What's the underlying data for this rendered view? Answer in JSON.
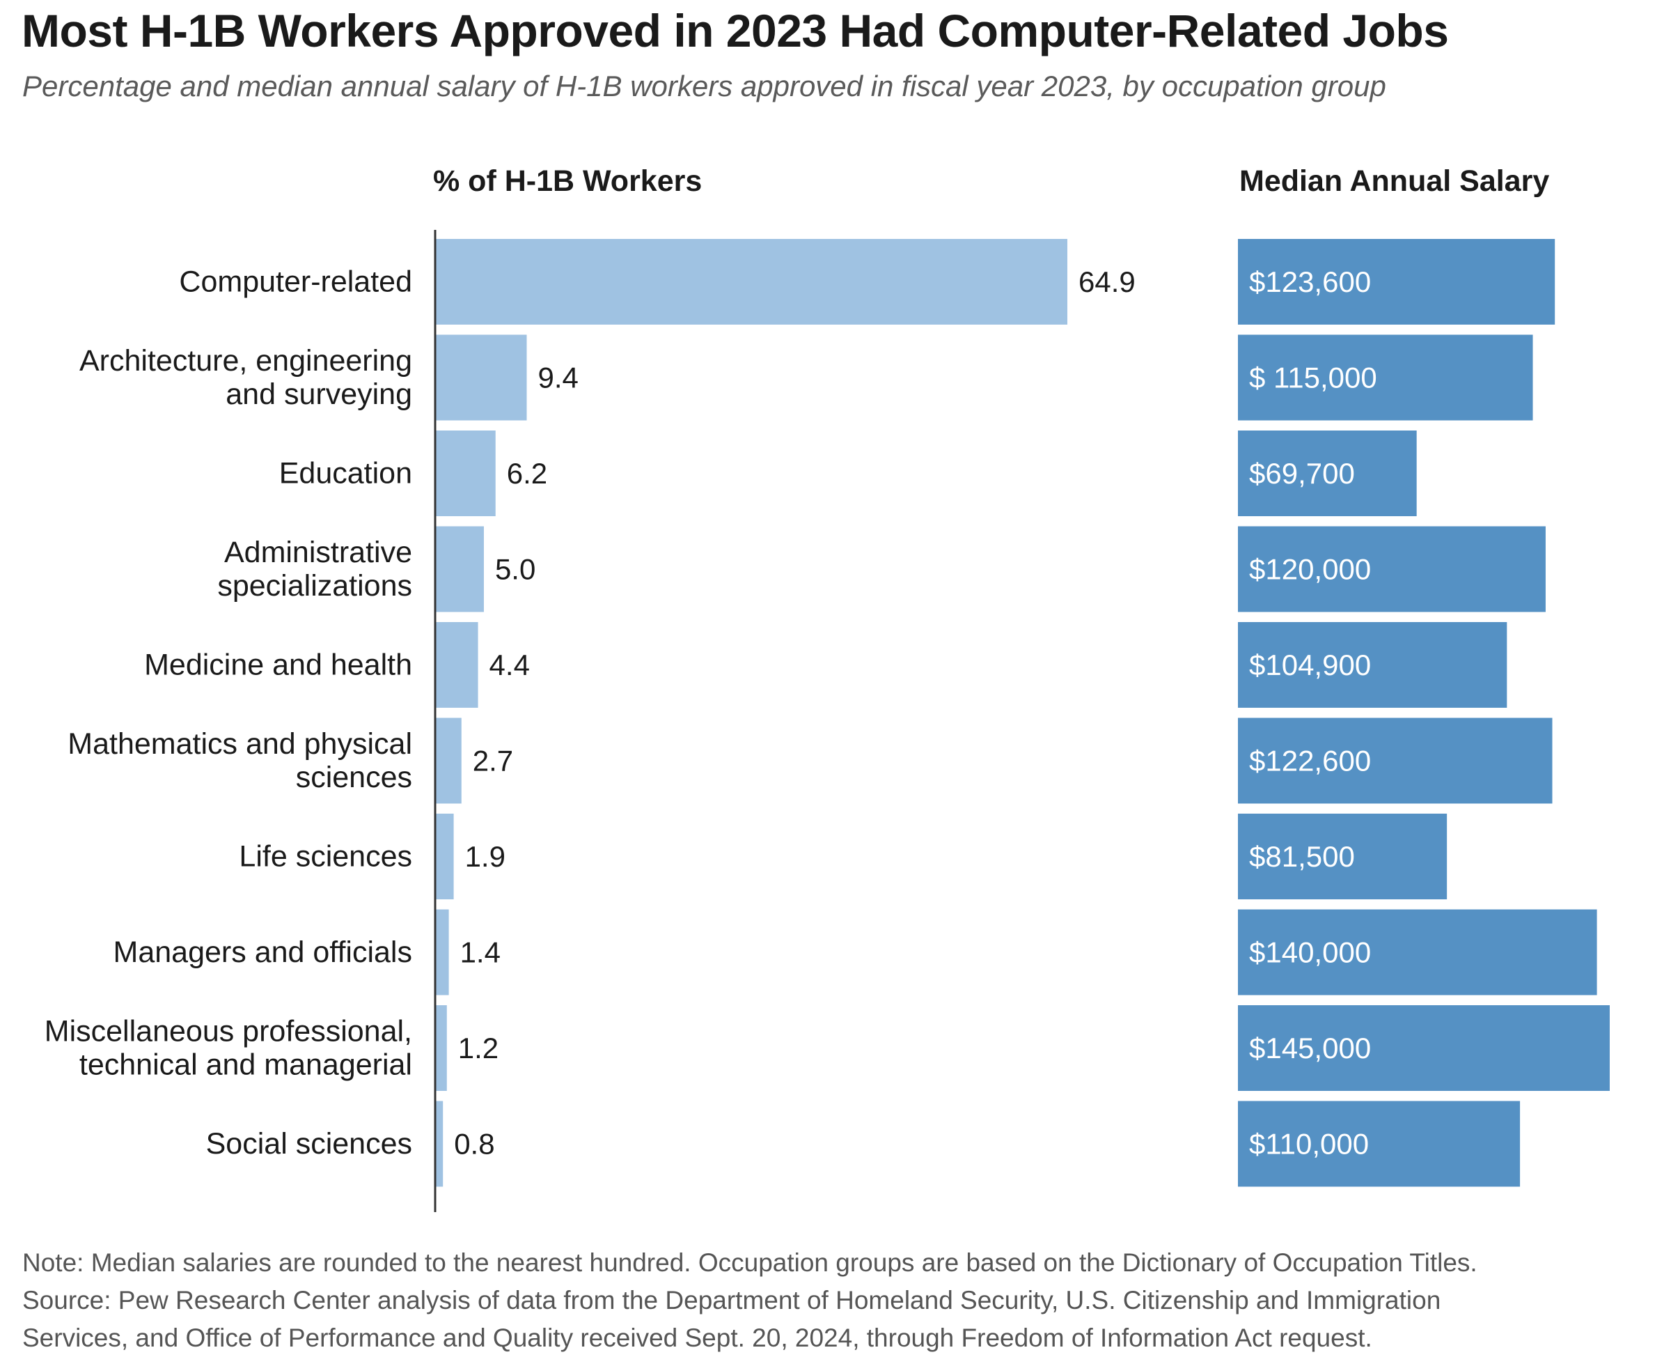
{
  "header": {
    "title": "Most H-1B Workers Approved in 2023 Had Computer-Related Jobs",
    "subtitle": "Percentage and median annual salary of H-1B workers approved in fiscal year 2023, by occupation group"
  },
  "notes": {
    "note": "Note: Median salaries are rounded to the nearest hundred. Occupation groups are based on the Dictionary of Occupation Titles.",
    "source_line_1": "Source: Pew Research Center analysis of data from the Department of Homeland Security, U.S. Citizenship and Immigration",
    "source_line_2": "Services, and Office of Performance and Quality received Sept. 20, 2024, through Freedom of Information Act request."
  },
  "colors": {
    "percent_bar": "#9fc2e2",
    "salary_bar": "#5591c4",
    "axis_line": "#333333",
    "label_text": "#1a1a1a",
    "salary_text": "#ffffff"
  },
  "chart_data": [
    {
      "type": "bar",
      "orientation": "horizontal",
      "title": "% of H-1B Workers",
      "categories": [
        [
          "Computer-related"
        ],
        [
          "Architecture, engineering",
          "and surveying"
        ],
        [
          "Education"
        ],
        [
          "Administrative",
          "specializations"
        ],
        [
          "Medicine and health"
        ],
        [
          "Mathematics and physical",
          "sciences"
        ],
        [
          "Life sciences"
        ],
        [
          "Managers and officials"
        ],
        [
          "Miscellaneous professional,",
          "technical and managerial"
        ],
        [
          "Social sciences"
        ]
      ],
      "values": [
        64.9,
        9.4,
        6.2,
        5.0,
        4.4,
        2.7,
        1.9,
        1.4,
        1.2,
        0.8
      ],
      "value_labels": [
        "64.9",
        "9.4",
        "6.2",
        "5.0",
        "4.4",
        "2.7",
        "1.9",
        "1.4",
        "1.2",
        "0.8"
      ],
      "xlim": [
        0,
        64.9
      ],
      "grid": false
    },
    {
      "type": "bar",
      "orientation": "horizontal",
      "title": "Median Annual Salary",
      "values": [
        123600,
        115000,
        69700,
        120000,
        104900,
        122600,
        81500,
        140000,
        145000,
        110000
      ],
      "value_labels": [
        "$123,600",
        "$ 115,000",
        "$69,700",
        "$120,000",
        "$104,900",
        "$122,600",
        "$81,500",
        "$140,000",
        "$145,000",
        "$110,000"
      ],
      "xlim": [
        0,
        145000
      ],
      "grid": false
    }
  ]
}
